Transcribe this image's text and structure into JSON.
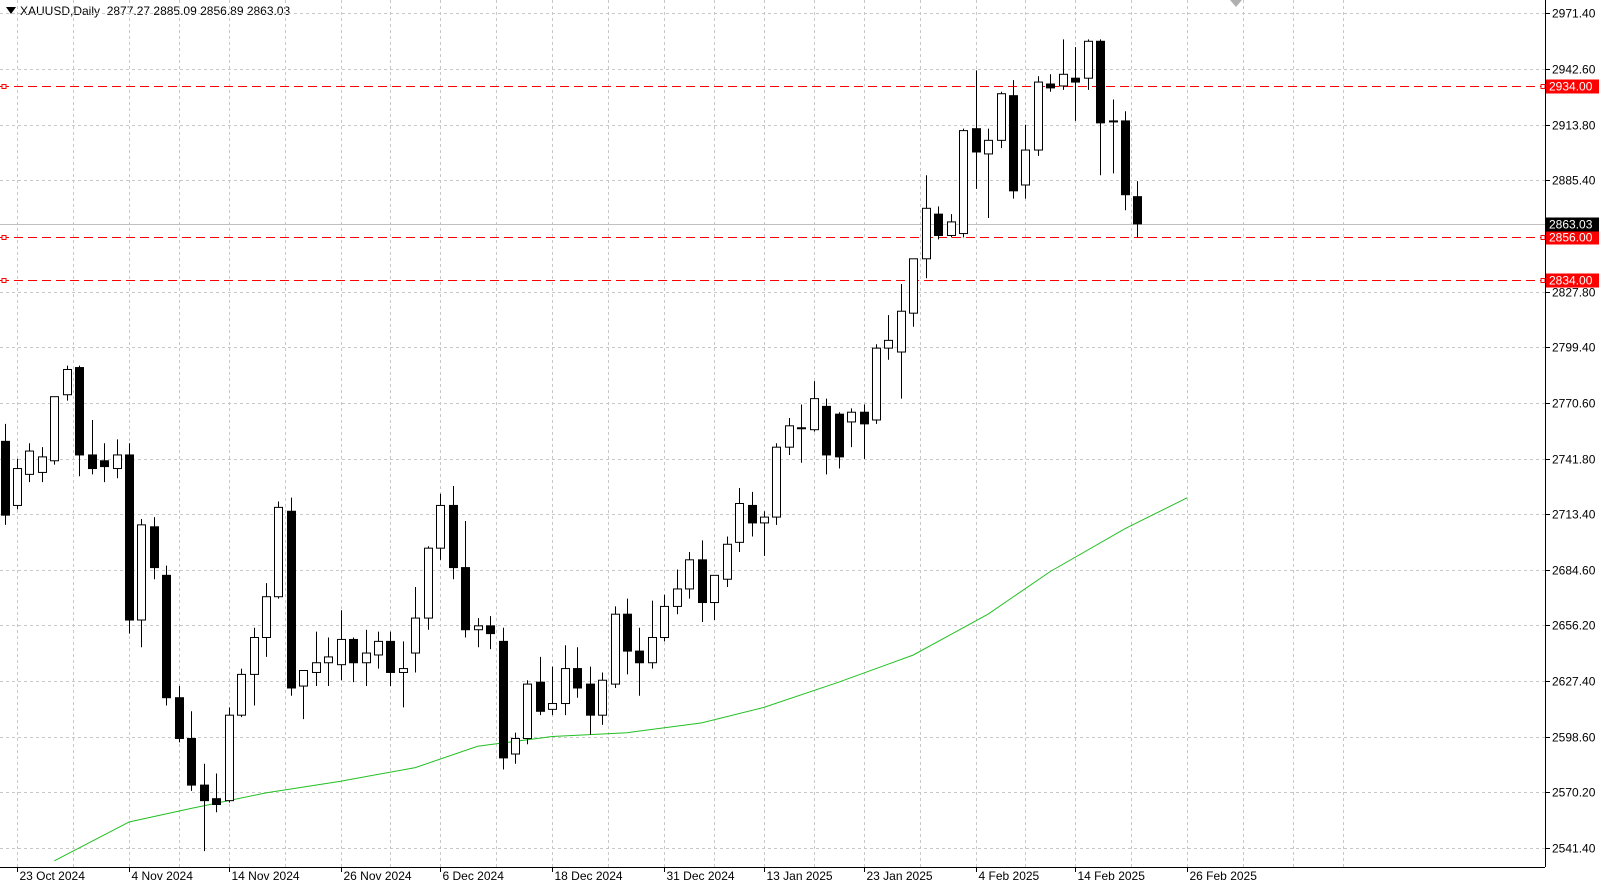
{
  "header": {
    "symbol": "XAUUSD,Daily",
    "ohlc": "2877.27 2885.09 2856.89 2863.03"
  },
  "colors": {
    "background": "#ffffff",
    "grid": "#c8c8c8",
    "candle": "#000000",
    "ma_line": "#22c022",
    "level_line": "#ff0000",
    "price_label_bg": "#000000"
  },
  "icons": [
    "dropdown-triangle-icon",
    "chart-shift-marker-icon"
  ],
  "chart_data": {
    "type": "candlestick",
    "symbol": "XAUUSD",
    "timeframe": "Daily",
    "y_axis": {
      "ticks": [
        2541.4,
        2570.2,
        2598.6,
        2627.4,
        2656.2,
        2684.6,
        2713.4,
        2741.8,
        2770.6,
        2799.4,
        2827.8,
        2885.4,
        2913.8,
        2942.6,
        2971.4
      ],
      "range": [
        2534,
        2976
      ],
      "position": "right"
    },
    "x_axis": {
      "labels": [
        "23 Oct 2024",
        "4 Nov 2024",
        "14 Nov 2024",
        "26 Nov 2024",
        "6 Dec 2024",
        "18 Dec 2024",
        "31 Dec 2024",
        "13 Jan 2025",
        "23 Jan 2025",
        "4 Feb 2025",
        "14 Feb 2025",
        "26 Feb 2025"
      ],
      "label_bar_index": [
        1,
        10,
        18,
        27,
        35,
        44,
        53,
        61,
        69,
        78,
        86,
        95
      ]
    },
    "grid": true,
    "horizontal_levels": [
      {
        "price": 2934.0,
        "label": "2934.00"
      },
      {
        "price": 2856.0,
        "label": "2856.00"
      },
      {
        "price": 2834.0,
        "label": "2834.00"
      }
    ],
    "current_price": {
      "price": 2863.03,
      "label": "2863.03"
    },
    "moving_average": {
      "x": [
        4,
        10,
        15,
        21,
        27,
        33,
        38,
        44,
        50,
        56,
        61,
        67,
        73,
        79,
        84,
        90,
        95
      ],
      "y": [
        2535,
        2555,
        2562,
        2570,
        2576,
        2583,
        2594,
        2599,
        2601,
        2606,
        2614,
        2627,
        2641,
        2662,
        2684,
        2706,
        2722
      ]
    },
    "candles": [
      {
        "o": 2751,
        "h": 2760,
        "l": 2708,
        "c": 2713
      },
      {
        "o": 2718,
        "h": 2742,
        "l": 2716,
        "c": 2737
      },
      {
        "o": 2734,
        "h": 2750,
        "l": 2730,
        "c": 2746
      },
      {
        "o": 2735,
        "h": 2748,
        "l": 2730,
        "c": 2743
      },
      {
        "o": 2741,
        "h": 2774,
        "l": 2739,
        "c": 2774
      },
      {
        "o": 2775,
        "h": 2790,
        "l": 2772,
        "c": 2788
      },
      {
        "o": 2789,
        "h": 2790,
        "l": 2733,
        "c": 2744
      },
      {
        "o": 2744,
        "h": 2762,
        "l": 2734,
        "c": 2737
      },
      {
        "o": 2741,
        "h": 2750,
        "l": 2730,
        "c": 2738
      },
      {
        "o": 2737,
        "h": 2752,
        "l": 2732,
        "c": 2744
      },
      {
        "o": 2744,
        "h": 2750,
        "l": 2652,
        "c": 2659
      },
      {
        "o": 2659,
        "h": 2711,
        "l": 2645,
        "c": 2708
      },
      {
        "o": 2707,
        "h": 2712,
        "l": 2680,
        "c": 2686
      },
      {
        "o": 2682,
        "h": 2687,
        "l": 2615,
        "c": 2619
      },
      {
        "o": 2619,
        "h": 2625,
        "l": 2596,
        "c": 2598
      },
      {
        "o": 2598,
        "h": 2612,
        "l": 2571,
        "c": 2574
      },
      {
        "o": 2574,
        "h": 2585,
        "l": 2540,
        "c": 2566
      },
      {
        "o": 2567,
        "h": 2580,
        "l": 2560,
        "c": 2564
      },
      {
        "o": 2566,
        "h": 2614,
        "l": 2565,
        "c": 2610
      },
      {
        "o": 2610,
        "h": 2634,
        "l": 2609,
        "c": 2631
      },
      {
        "o": 2631,
        "h": 2655,
        "l": 2615,
        "c": 2650
      },
      {
        "o": 2650,
        "h": 2678,
        "l": 2640,
        "c": 2671
      },
      {
        "o": 2671,
        "h": 2720,
        "l": 2670,
        "c": 2717
      },
      {
        "o": 2715,
        "h": 2722,
        "l": 2620,
        "c": 2624
      },
      {
        "o": 2625,
        "h": 2633,
        "l": 2608,
        "c": 2633
      },
      {
        "o": 2632,
        "h": 2653,
        "l": 2625,
        "c": 2637
      },
      {
        "o": 2637,
        "h": 2650,
        "l": 2625,
        "c": 2640
      },
      {
        "o": 2636,
        "h": 2664,
        "l": 2628,
        "c": 2649
      },
      {
        "o": 2649,
        "h": 2650,
        "l": 2627,
        "c": 2637
      },
      {
        "o": 2637,
        "h": 2654,
        "l": 2625,
        "c": 2642
      },
      {
        "o": 2641,
        "h": 2653,
        "l": 2634,
        "c": 2648
      },
      {
        "o": 2648,
        "h": 2653,
        "l": 2625,
        "c": 2632
      },
      {
        "o": 2632,
        "h": 2648,
        "l": 2614,
        "c": 2634
      },
      {
        "o": 2642,
        "h": 2676,
        "l": 2632,
        "c": 2660
      },
      {
        "o": 2660,
        "h": 2697,
        "l": 2654,
        "c": 2696
      },
      {
        "o": 2696,
        "h": 2724,
        "l": 2690,
        "c": 2718
      },
      {
        "o": 2718,
        "h": 2728,
        "l": 2680,
        "c": 2686
      },
      {
        "o": 2686,
        "h": 2710,
        "l": 2650,
        "c": 2654
      },
      {
        "o": 2654,
        "h": 2660,
        "l": 2645,
        "c": 2656
      },
      {
        "o": 2656,
        "h": 2661,
        "l": 2644,
        "c": 2652
      },
      {
        "o": 2648,
        "h": 2655,
        "l": 2582,
        "c": 2588
      },
      {
        "o": 2590,
        "h": 2601,
        "l": 2585,
        "c": 2598
      },
      {
        "o": 2598,
        "h": 2628,
        "l": 2595,
        "c": 2626
      },
      {
        "o": 2627,
        "h": 2640,
        "l": 2610,
        "c": 2612
      },
      {
        "o": 2613,
        "h": 2635,
        "l": 2610,
        "c": 2616
      },
      {
        "o": 2616,
        "h": 2646,
        "l": 2610,
        "c": 2634
      },
      {
        "o": 2634,
        "h": 2645,
        "l": 2619,
        "c": 2624
      },
      {
        "o": 2626,
        "h": 2635,
        "l": 2600,
        "c": 2610
      },
      {
        "o": 2610,
        "h": 2632,
        "l": 2605,
        "c": 2628
      },
      {
        "o": 2626,
        "h": 2666,
        "l": 2624,
        "c": 2662
      },
      {
        "o": 2662,
        "h": 2670,
        "l": 2631,
        "c": 2643
      },
      {
        "o": 2643,
        "h": 2655,
        "l": 2620,
        "c": 2637
      },
      {
        "o": 2637,
        "h": 2669,
        "l": 2634,
        "c": 2650
      },
      {
        "o": 2650,
        "h": 2672,
        "l": 2648,
        "c": 2666
      },
      {
        "o": 2666,
        "h": 2685,
        "l": 2662,
        "c": 2675
      },
      {
        "o": 2675,
        "h": 2694,
        "l": 2670,
        "c": 2690
      },
      {
        "o": 2690,
        "h": 2700,
        "l": 2658,
        "c": 2668
      },
      {
        "o": 2668,
        "h": 2682,
        "l": 2659,
        "c": 2682
      },
      {
        "o": 2680,
        "h": 2702,
        "l": 2676,
        "c": 2698
      },
      {
        "o": 2699,
        "h": 2727,
        "l": 2694,
        "c": 2719
      },
      {
        "o": 2718,
        "h": 2725,
        "l": 2702,
        "c": 2709
      },
      {
        "o": 2709,
        "h": 2715,
        "l": 2692,
        "c": 2712
      },
      {
        "o": 2712,
        "h": 2750,
        "l": 2708,
        "c": 2748
      },
      {
        "o": 2748,
        "h": 2763,
        "l": 2744,
        "c": 2759
      },
      {
        "o": 2758,
        "h": 2770,
        "l": 2740,
        "c": 2758
      },
      {
        "o": 2757,
        "h": 2782,
        "l": 2756,
        "c": 2773
      },
      {
        "o": 2769,
        "h": 2773,
        "l": 2734,
        "c": 2744
      },
      {
        "o": 2765,
        "h": 2766,
        "l": 2737,
        "c": 2743
      },
      {
        "o": 2761,
        "h": 2768,
        "l": 2748,
        "c": 2766
      },
      {
        "o": 2766,
        "h": 2770,
        "l": 2742,
        "c": 2760
      },
      {
        "o": 2762,
        "h": 2801,
        "l": 2760,
        "c": 2799
      },
      {
        "o": 2799,
        "h": 2816,
        "l": 2793,
        "c": 2803
      },
      {
        "o": 2797,
        "h": 2832,
        "l": 2773,
        "c": 2818
      },
      {
        "o": 2817,
        "h": 2844,
        "l": 2810,
        "c": 2845
      },
      {
        "o": 2845,
        "h": 2888,
        "l": 2835,
        "c": 2871
      },
      {
        "o": 2868,
        "h": 2872,
        "l": 2855,
        "c": 2857
      },
      {
        "o": 2857,
        "h": 2868,
        "l": 2856,
        "c": 2864
      },
      {
        "o": 2858,
        "h": 2912,
        "l": 2856,
        "c": 2911
      },
      {
        "o": 2912,
        "h": 2942,
        "l": 2881,
        "c": 2900
      },
      {
        "o": 2899,
        "h": 2912,
        "l": 2866,
        "c": 2906
      },
      {
        "o": 2906,
        "h": 2931,
        "l": 2902,
        "c": 2930
      },
      {
        "o": 2929,
        "h": 2937,
        "l": 2876,
        "c": 2880
      },
      {
        "o": 2883,
        "h": 2914,
        "l": 2876,
        "c": 2901
      },
      {
        "o": 2901,
        "h": 2939,
        "l": 2898,
        "c": 2936
      },
      {
        "o": 2935,
        "h": 2940,
        "l": 2931,
        "c": 2933
      },
      {
        "o": 2934,
        "h": 2958,
        "l": 2932,
        "c": 2940
      },
      {
        "o": 2938,
        "h": 2954,
        "l": 2916,
        "c": 2936
      },
      {
        "o": 2938,
        "h": 2958,
        "l": 2932,
        "c": 2957
      },
      {
        "o": 2957,
        "h": 2958,
        "l": 2888,
        "c": 2915
      },
      {
        "o": 2916,
        "h": 2927,
        "l": 2889,
        "c": 2916
      },
      {
        "o": 2916,
        "h": 2921,
        "l": 2870,
        "c": 2878
      },
      {
        "o": 2877,
        "h": 2885,
        "l": 2856,
        "c": 2863
      }
    ],
    "title": "XAUUSD,Daily"
  }
}
